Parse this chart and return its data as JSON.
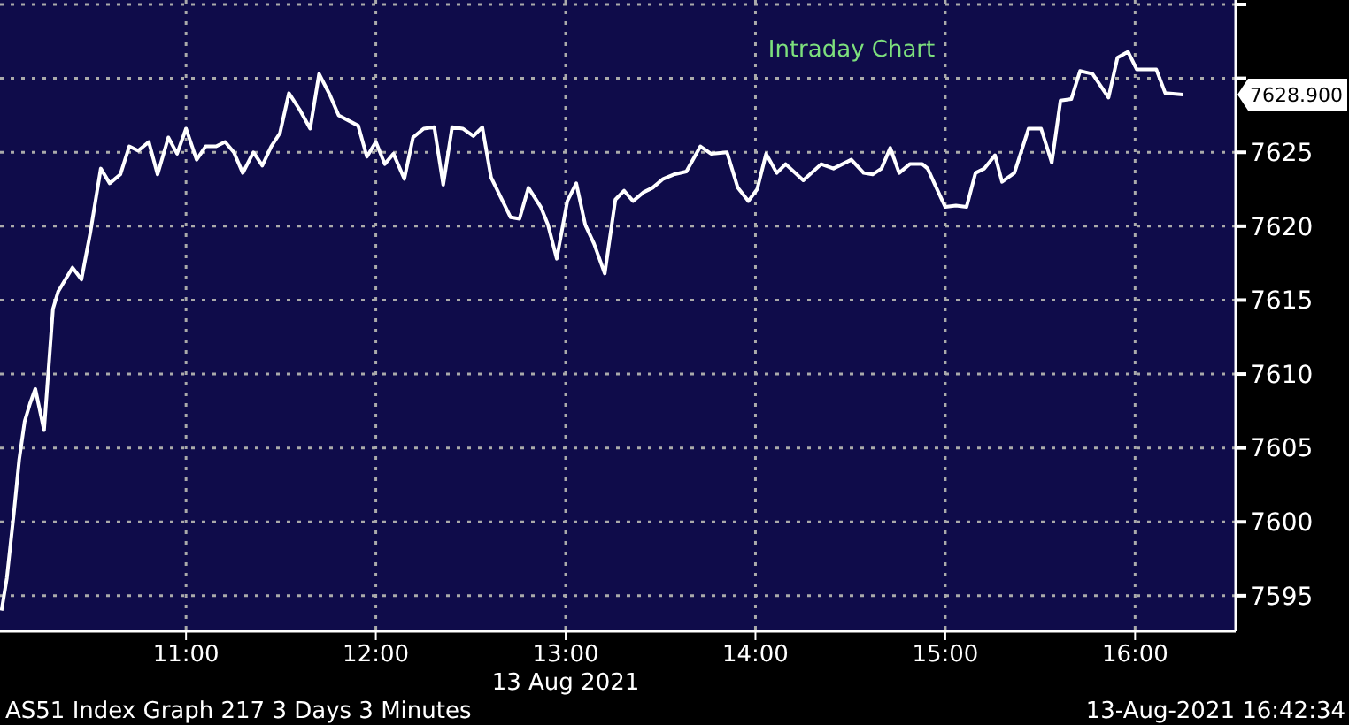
{
  "chart_data": {
    "type": "line",
    "title": "Intraday Chart",
    "xlabel": "13 Aug 2021",
    "x": [
      10.028,
      10.056,
      10.093,
      10.121,
      10.15,
      10.178,
      10.206,
      10.252,
      10.299,
      10.327,
      10.402,
      10.449,
      10.495,
      10.551,
      10.598,
      10.654,
      10.701,
      10.748,
      10.804,
      10.85,
      10.907,
      10.953,
      11.0,
      11.056,
      11.103,
      11.159,
      11.206,
      11.252,
      11.299,
      11.355,
      11.402,
      11.449,
      11.495,
      11.542,
      11.598,
      11.654,
      11.701,
      11.757,
      11.804,
      11.907,
      11.953,
      12.0,
      12.047,
      12.093,
      12.15,
      12.196,
      12.252,
      12.308,
      12.355,
      12.402,
      12.458,
      12.514,
      12.561,
      12.607,
      12.664,
      12.71,
      12.757,
      12.804,
      12.869,
      12.907,
      12.953,
      13.009,
      13.056,
      13.103,
      13.15,
      13.206,
      13.262,
      13.308,
      13.355,
      13.411,
      13.458,
      13.514,
      13.57,
      13.636,
      13.71,
      13.766,
      13.85,
      13.907,
      13.963,
      14.009,
      14.056,
      14.112,
      14.159,
      14.252,
      14.346,
      14.411,
      14.505,
      14.57,
      14.617,
      14.664,
      14.71,
      14.757,
      14.813,
      14.879,
      14.907,
      14.953,
      15.0,
      15.056,
      15.112,
      15.159,
      15.206,
      15.262,
      15.299,
      15.364,
      15.439,
      15.505,
      15.561,
      15.607,
      15.664,
      15.71,
      15.776,
      15.86,
      15.907,
      15.963,
      16.009,
      16.112,
      16.159,
      16.252
    ],
    "series": [
      {
        "color": "#ffffff",
        "values": [
          7594.0,
          7596.2,
          7600.6,
          7604.2,
          7606.8,
          7608.0,
          7609.0,
          7606.2,
          7614.4,
          7615.6,
          7617.2,
          7616.4,
          7619.5,
          7623.9,
          7622.9,
          7623.5,
          7625.4,
          7625.1,
          7625.7,
          7623.5,
          7626.0,
          7624.9,
          7626.6,
          7624.5,
          7625.4,
          7625.4,
          7625.7,
          7625.0,
          7623.6,
          7625.0,
          7624.1,
          7625.4,
          7626.3,
          7629.0,
          7627.9,
          7626.6,
          7630.3,
          7628.9,
          7627.5,
          7626.8,
          7624.7,
          7625.7,
          7624.2,
          7624.9,
          7623.2,
          7626.0,
          7626.6,
          7626.7,
          7622.8,
          7626.7,
          7626.6,
          7626.1,
          7626.7,
          7623.3,
          7621.8,
          7620.6,
          7620.5,
          7622.6,
          7621.3,
          7620.1,
          7617.8,
          7621.7,
          7622.9,
          7620.1,
          7618.8,
          7616.8,
          7621.8,
          7622.4,
          7621.7,
          7622.3,
          7622.6,
          7623.2,
          7623.5,
          7623.7,
          7625.4,
          7624.9,
          7625.0,
          7622.6,
          7621.7,
          7622.5,
          7624.9,
          7623.6,
          7624.2,
          7623.1,
          7624.2,
          7623.9,
          7624.5,
          7623.6,
          7623.5,
          7623.9,
          7625.3,
          7623.6,
          7624.2,
          7624.2,
          7623.9,
          7622.6,
          7621.3,
          7621.4,
          7621.3,
          7623.6,
          7623.9,
          7624.8,
          7623.0,
          7623.6,
          7626.6,
          7626.6,
          7624.3,
          7628.5,
          7628.6,
          7630.5,
          7630.3,
          7628.7,
          7631.4,
          7631.8,
          7630.6,
          7630.6,
          7629.0,
          7628.9
        ]
      }
    ],
    "xlim": [
      10.02,
      16.53
    ],
    "xticks": [
      {
        "value": 11,
        "label": "11:00"
      },
      {
        "value": 12,
        "label": "12:00"
      },
      {
        "value": 13,
        "label": "13:00"
      },
      {
        "value": 14,
        "label": "14:00"
      },
      {
        "value": 15,
        "label": "15:00"
      },
      {
        "value": 16,
        "label": "16:00"
      }
    ],
    "ylim": [
      7592.6,
      7635.3
    ],
    "yticks": [
      7595,
      7600,
      7605,
      7610,
      7615,
      7620,
      7625,
      {
        "value": 7630,
        "label": null
      },
      {
        "value": 7635,
        "label": null
      }
    ],
    "grid": true,
    "marker": "none",
    "line_style": "solid",
    "annotations": [
      "7628.900",
      "AS51 Index Graph 217 3 Days 3 Minutes",
      "13-Aug-2021 16:42:34"
    ]
  }
}
